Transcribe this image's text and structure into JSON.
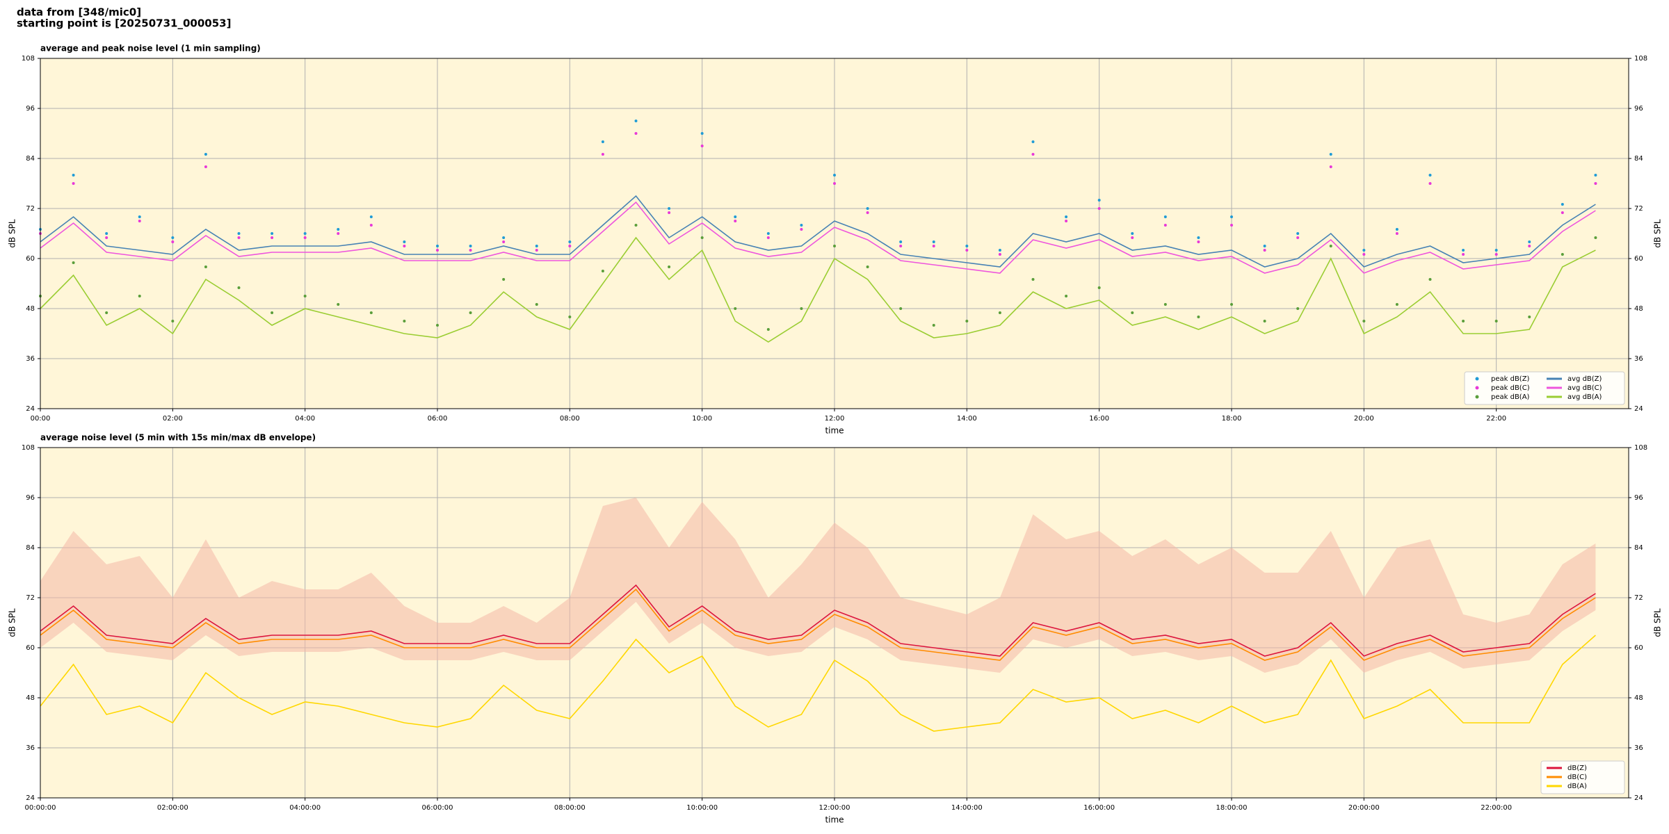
{
  "header": {
    "line1": "data from [348/mic0]",
    "line2": "starting point is [20250731_000053]"
  },
  "chart_data": [
    {
      "type": "line",
      "title": "average and peak noise level (1 min sampling)",
      "xlabel": "time",
      "ylabel": "dB SPL",
      "x": [
        0,
        0.5,
        1,
        1.5,
        2,
        2.5,
        3,
        3.5,
        4,
        4.5,
        5,
        5.5,
        6,
        6.5,
        7,
        7.5,
        8,
        8.5,
        9,
        9.5,
        10,
        10.5,
        11,
        11.5,
        12,
        12.5,
        13,
        13.5,
        14,
        14.5,
        15,
        15.5,
        16,
        16.5,
        17,
        17.5,
        18,
        18.5,
        19,
        19.5,
        20,
        20.5,
        21,
        21.5,
        22,
        22.5,
        23,
        23.5
      ],
      "xlim": [
        0,
        24
      ],
      "xticks": [
        {
          "value": 0,
          "label": "00:00"
        },
        {
          "value": 2,
          "label": "02:00"
        },
        {
          "value": 4,
          "label": "04:00"
        },
        {
          "value": 6,
          "label": "06:00"
        },
        {
          "value": 8,
          "label": "08:00"
        },
        {
          "value": 10,
          "label": "10:00"
        },
        {
          "value": 12,
          "label": "12:00"
        },
        {
          "value": 14,
          "label": "14:00"
        },
        {
          "value": 16,
          "label": "16:00"
        },
        {
          "value": 18,
          "label": "18:00"
        },
        {
          "value": 20,
          "label": "20:00"
        },
        {
          "value": 22,
          "label": "22:00"
        }
      ],
      "ylim": [
        24,
        108
      ],
      "yticks": [
        24,
        36,
        48,
        60,
        72,
        84,
        96,
        108
      ],
      "grid": true,
      "legend": "lower right",
      "legend_columns": 2,
      "background": "#fff6d8",
      "series": [
        {
          "name": "peak dB(Z)",
          "mode": "markers",
          "color": "#1f9bd6",
          "values": [
            67,
            80,
            66,
            70,
            65,
            85,
            66,
            66,
            66,
            67,
            70,
            64,
            63,
            63,
            65,
            63,
            64,
            88,
            93,
            72,
            90,
            70,
            66,
            68,
            80,
            72,
            64,
            64,
            63,
            62,
            88,
            70,
            74,
            66,
            70,
            65,
            70,
            63,
            66,
            85,
            62,
            67,
            80,
            62,
            62,
            64,
            73,
            80
          ]
        },
        {
          "name": "peak dB(C)",
          "mode": "markers",
          "color": "#e838d8",
          "values": [
            66,
            78,
            65,
            69,
            64,
            82,
            65,
            65,
            65,
            66,
            68,
            63,
            62,
            62,
            64,
            62,
            63,
            85,
            90,
            71,
            87,
            69,
            65,
            67,
            78,
            71,
            63,
            63,
            62,
            61,
            85,
            69,
            72,
            65,
            68,
            64,
            68,
            62,
            65,
            82,
            61,
            66,
            78,
            61,
            61,
            63,
            71,
            78
          ]
        },
        {
          "name": "peak dB(A)",
          "mode": "markers",
          "color": "#5a9e3a",
          "values": [
            51,
            59,
            47,
            51,
            45,
            58,
            53,
            47,
            51,
            49,
            47,
            45,
            44,
            47,
            55,
            49,
            46,
            57,
            68,
            58,
            65,
            48,
            43,
            48,
            63,
            58,
            48,
            44,
            45,
            47,
            55,
            51,
            53,
            47,
            49,
            46,
            49,
            45,
            48,
            63,
            45,
            49,
            55,
            45,
            45,
            46,
            61,
            65
          ]
        },
        {
          "name": "avg dB(Z)",
          "mode": "line",
          "color": "#4682b4",
          "values": [
            64,
            70,
            63,
            62,
            61,
            67,
            62,
            63,
            63,
            63,
            64,
            61,
            61,
            61,
            63,
            61,
            61,
            68,
            75,
            65,
            70,
            64,
            62,
            63,
            69,
            66,
            61,
            60,
            59,
            58,
            66,
            64,
            66,
            62,
            63,
            61,
            62,
            58,
            60,
            66,
            58,
            61,
            63,
            59,
            60,
            61,
            68,
            73
          ]
        },
        {
          "name": "avg dB(C)",
          "mode": "line",
          "color": "#ee55dd",
          "values": [
            62.5,
            68.5,
            61.5,
            60.5,
            59.5,
            65.5,
            60.5,
            61.5,
            61.5,
            61.5,
            62.5,
            59.5,
            59.5,
            59.5,
            61.5,
            59.5,
            59.5,
            66.5,
            73.5,
            63.5,
            68.5,
            62.5,
            60.5,
            61.5,
            67.5,
            64.5,
            59.5,
            58.5,
            57.5,
            56.5,
            64.5,
            62.5,
            64.5,
            60.5,
            61.5,
            59.5,
            60.5,
            56.5,
            58.5,
            64.5,
            56.5,
            59.5,
            61.5,
            57.5,
            58.5,
            59.5,
            66.5,
            71.5
          ]
        },
        {
          "name": "avg dB(A)",
          "mode": "line",
          "color": "#9acd32",
          "values": [
            48,
            56,
            44,
            48,
            42,
            55,
            50,
            44,
            48,
            46,
            44,
            42,
            41,
            44,
            52,
            46,
            43,
            54,
            65,
            55,
            62,
            45,
            40,
            45,
            60,
            55,
            45,
            41,
            42,
            44,
            52,
            48,
            50,
            44,
            46,
            43,
            46,
            42,
            45,
            60,
            42,
            46,
            52,
            42,
            42,
            43,
            58,
            62
          ]
        }
      ]
    },
    {
      "type": "line",
      "title": "average noise level (5 min with 15s min/max dB envelope)",
      "xlabel": "time",
      "ylabel": "dB SPL",
      "x": [
        0,
        0.5,
        1,
        1.5,
        2,
        2.5,
        3,
        3.5,
        4,
        4.5,
        5,
        5.5,
        6,
        6.5,
        7,
        7.5,
        8,
        8.5,
        9,
        9.5,
        10,
        10.5,
        11,
        11.5,
        12,
        12.5,
        13,
        13.5,
        14,
        14.5,
        15,
        15.5,
        16,
        16.5,
        17,
        17.5,
        18,
        18.5,
        19,
        19.5,
        20,
        20.5,
        21,
        21.5,
        22,
        22.5,
        23,
        23.5
      ],
      "xlim": [
        0,
        24
      ],
      "xticks": [
        {
          "value": 0,
          "label": "00:00:00"
        },
        {
          "value": 2,
          "label": "02:00:00"
        },
        {
          "value": 4,
          "label": "04:00:00"
        },
        {
          "value": 6,
          "label": "06:00:00"
        },
        {
          "value": 8,
          "label": "08:00:00"
        },
        {
          "value": 10,
          "label": "10:00:00"
        },
        {
          "value": 12,
          "label": "12:00:00"
        },
        {
          "value": 14,
          "label": "14:00:00"
        },
        {
          "value": 16,
          "label": "16:00:00"
        },
        {
          "value": 18,
          "label": "18:00:00"
        },
        {
          "value": 20,
          "label": "20:00:00"
        },
        {
          "value": 22,
          "label": "22:00:00"
        }
      ],
      "ylim": [
        24,
        108
      ],
      "yticks": [
        24,
        36,
        48,
        60,
        72,
        84,
        96,
        108
      ],
      "grid": true,
      "legend": "lower right",
      "legend_columns": 1,
      "background": "#fff6d8",
      "envelope": {
        "color": "#f4b8a8",
        "min": [
          60,
          66,
          59,
          58,
          57,
          63,
          58,
          59,
          59,
          59,
          60,
          57,
          57,
          57,
          59,
          57,
          57,
          64,
          71,
          61,
          66,
          60,
          58,
          59,
          65,
          62,
          57,
          56,
          55,
          54,
          62,
          60,
          62,
          58,
          59,
          57,
          58,
          54,
          56,
          62,
          54,
          57,
          59,
          55,
          56,
          57,
          64,
          69
        ],
        "max": [
          76,
          88,
          80,
          82,
          72,
          86,
          72,
          76,
          74,
          74,
          78,
          70,
          66,
          66,
          70,
          66,
          72,
          94,
          96,
          84,
          95,
          86,
          72,
          80,
          90,
          84,
          72,
          70,
          68,
          72,
          92,
          86,
          88,
          82,
          86,
          80,
          84,
          78,
          78,
          88,
          72,
          84,
          86,
          68,
          66,
          68,
          80,
          85
        ]
      },
      "series": [
        {
          "name": "dB(Z)",
          "mode": "line",
          "color": "#dc143c",
          "values": [
            64,
            70,
            63,
            62,
            61,
            67,
            62,
            63,
            63,
            63,
            64,
            61,
            61,
            61,
            63,
            61,
            61,
            68,
            75,
            65,
            70,
            64,
            62,
            63,
            69,
            66,
            61,
            60,
            59,
            58,
            66,
            64,
            66,
            62,
            63,
            61,
            62,
            58,
            60,
            66,
            58,
            61,
            63,
            59,
            60,
            61,
            68,
            73
          ]
        },
        {
          "name": "dB(C)",
          "mode": "line",
          "color": "#ff8c00",
          "values": [
            63,
            69,
            62,
            61,
            60,
            66,
            61,
            62,
            62,
            62,
            63,
            60,
            60,
            60,
            62,
            60,
            60,
            67,
            74,
            64,
            69,
            63,
            61,
            62,
            68,
            65,
            60,
            59,
            58,
            57,
            65,
            63,
            65,
            61,
            62,
            60,
            61,
            57,
            59,
            65,
            57,
            60,
            62,
            58,
            59,
            60,
            67,
            72
          ]
        },
        {
          "name": "dB(A)",
          "mode": "line",
          "color": "#ffd700",
          "values": [
            46,
            56,
            44,
            46,
            42,
            54,
            48,
            44,
            47,
            46,
            44,
            42,
            41,
            43,
            51,
            45,
            43,
            52,
            62,
            54,
            58,
            46,
            41,
            44,
            57,
            52,
            44,
            40,
            41,
            42,
            50,
            47,
            48,
            43,
            45,
            42,
            46,
            42,
            44,
            57,
            43,
            46,
            50,
            42,
            42,
            42,
            56,
            63
          ]
        }
      ]
    }
  ]
}
